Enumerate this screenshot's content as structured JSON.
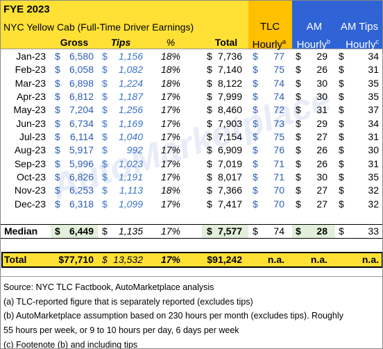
{
  "watermark": "AutoMarketplace",
  "header": {
    "title": "FYE 2023",
    "subtitle": "NYC Yellow Cab (Full-Time Driver Earnings)",
    "gross": "Gross",
    "tips": "Tips",
    "pct": "%",
    "total": "Total",
    "tlc": {
      "label": "TLC",
      "sub": "Hourly",
      "note": "a"
    },
    "am": {
      "label": "AM",
      "sub": "Hourly",
      "note": "b"
    },
    "am_tips": {
      "label": "AM Tips",
      "sub": "Hourly",
      "note": "c"
    }
  },
  "currency": "$",
  "table": {
    "rows": [
      [
        "Jan-23",
        "6,580",
        "1,156",
        "18%",
        "7,736",
        "77",
        "29",
        "34"
      ],
      [
        "Feb-23",
        "6,058",
        "1,082",
        "18%",
        "7,140",
        "75",
        "26",
        "31"
      ],
      [
        "Mar-23",
        "6,898",
        "1,224",
        "18%",
        "8,122",
        "74",
        "30",
        "35"
      ],
      [
        "Apr-23",
        "6,812",
        "1,187",
        "17%",
        "7,999",
        "74",
        "30",
        "35"
      ],
      [
        "May-23",
        "7,204",
        "1,256",
        "17%",
        "8,460",
        "72",
        "31",
        "37"
      ],
      [
        "Jun-23",
        "6,734",
        "1,169",
        "17%",
        "7,903",
        "73",
        "29",
        "34"
      ],
      [
        "Jul-23",
        "6,114",
        "1,040",
        "17%",
        "7,154",
        "75",
        "27",
        "31"
      ],
      [
        "Aug-23",
        "5,917",
        "992",
        "17%",
        "6,909",
        "76",
        "26",
        "30"
      ],
      [
        "Sep-23",
        "5,996",
        "1,023",
        "17%",
        "7,019",
        "71",
        "26",
        "31"
      ],
      [
        "Oct-23",
        "6,826",
        "1,191",
        "17%",
        "8,017",
        "71",
        "30",
        "35"
      ],
      [
        "Nov-23",
        "6,253",
        "1,113",
        "18%",
        "7,366",
        "70",
        "27",
        "32"
      ],
      [
        "Dec-23",
        "6,318",
        "1,099",
        "17%",
        "7,417",
        "70",
        "27",
        "32"
      ]
    ],
    "median": [
      "Median",
      "6,449",
      "1,135",
      "17%",
      "7,577",
      "74",
      "28",
      "33"
    ],
    "total": [
      "Total",
      "$77,710",
      "13,532",
      "17%",
      "$91,242",
      "n.a.",
      "n.a.",
      "n.a."
    ]
  },
  "notes": [
    "Source: NYC TLC Factbook, AutoMarketplace analysis",
    "(a) TLC-reported figure that is separately reported (excludes tips)",
    "(b) AutoMarketplace assumption based on 230 hours per month (excludes tips). Roughly",
    "55 hours per week, or 9 to 10 hours per day, 6 days per week",
    "(c) Footenote (b) and including tips"
  ]
}
